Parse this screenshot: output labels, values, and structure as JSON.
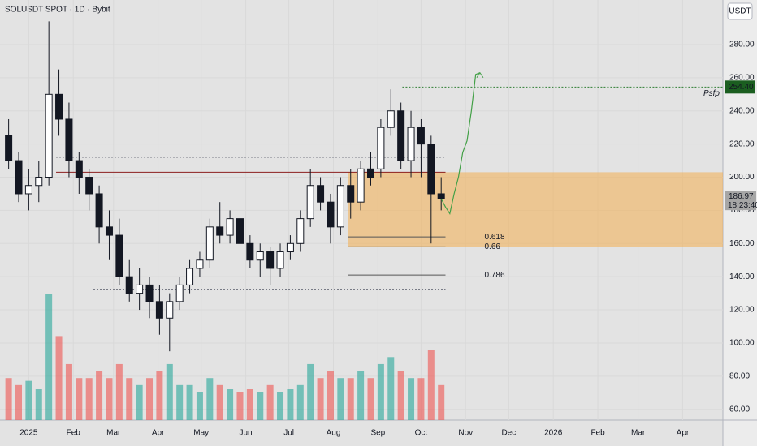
{
  "chart_data": {
    "type": "candlestick",
    "title": "SOLUSDT SPOT · 1D · Bybit",
    "currency": "USDT",
    "x": [
      -14,
      -7,
      0,
      7,
      14,
      21,
      28,
      35,
      42,
      49,
      56,
      63,
      70,
      77,
      84,
      91,
      98,
      105,
      112,
      119,
      126,
      133,
      140,
      147,
      154,
      161,
      168,
      175,
      182,
      189,
      196,
      203,
      210,
      217,
      224,
      231,
      238,
      245,
      252,
      259,
      266,
      273,
      280,
      287
    ],
    "open": [
      225,
      210,
      190,
      195,
      200,
      250,
      235,
      210,
      200,
      190,
      170,
      165,
      140,
      130,
      135,
      125,
      115,
      125,
      135,
      145,
      150,
      170,
      165,
      175,
      160,
      150,
      155,
      145,
      155,
      160,
      175,
      195,
      185,
      170,
      195,
      185,
      205,
      205,
      230,
      240,
      210,
      230,
      220,
      190
    ],
    "high": [
      235,
      215,
      205,
      210,
      294,
      265,
      245,
      215,
      205,
      195,
      180,
      175,
      150,
      145,
      140,
      135,
      130,
      140,
      150,
      155,
      175,
      185,
      180,
      180,
      165,
      160,
      158,
      160,
      165,
      180,
      205,
      200,
      190,
      200,
      205,
      210,
      215,
      235,
      253,
      245,
      240,
      235,
      225,
      200
    ],
    "low": [
      205,
      185,
      180,
      185,
      195,
      225,
      200,
      190,
      180,
      160,
      150,
      135,
      125,
      120,
      115,
      105,
      95,
      120,
      130,
      140,
      145,
      160,
      160,
      155,
      145,
      140,
      135,
      140,
      150,
      155,
      170,
      180,
      160,
      165,
      175,
      180,
      195,
      200,
      225,
      205,
      200,
      200,
      160,
      180
    ],
    "close": [
      210,
      190,
      195,
      200,
      250,
      235,
      210,
      200,
      190,
      170,
      165,
      140,
      130,
      135,
      125,
      115,
      125,
      135,
      145,
      150,
      170,
      165,
      175,
      160,
      150,
      155,
      145,
      155,
      160,
      175,
      195,
      185,
      170,
      195,
      185,
      205,
      200,
      230,
      240,
      210,
      230,
      220,
      190,
      186.97
    ],
    "volume": [
      3,
      2.5,
      2.8,
      2.2,
      9,
      6,
      4,
      3,
      3,
      3.5,
      3,
      4,
      3,
      2.5,
      3,
      3.5,
      4,
      2.5,
      2.5,
      2,
      3,
      2.5,
      2.2,
      2,
      2.2,
      2,
      2.5,
      2,
      2.2,
      2.5,
      4,
      3,
      3.5,
      3,
      3,
      3.5,
      3,
      4,
      4.5,
      3.5,
      3,
      3,
      5,
      2.5
    ],
    "vlim": [
      0,
      30
    ],
    "up_color": "#ffffff",
    "down_color": "#131722",
    "vol_up": "#26a69a",
    "vol_down": "#ef5350",
    "xlim": [
      -20,
      483
    ],
    "ylim": [
      53.5,
      306.9
    ],
    "xticks": [
      {
        "value": 0,
        "label": "2025"
      },
      {
        "value": 31,
        "label": "Feb"
      },
      {
        "value": 59,
        "label": "Mar"
      },
      {
        "value": 90,
        "label": "Apr"
      },
      {
        "value": 120,
        "label": "May"
      },
      {
        "value": 151,
        "label": "Jun"
      },
      {
        "value": 181,
        "label": "Jul"
      },
      {
        "value": 212,
        "label": "Aug"
      },
      {
        "value": 243,
        "label": "Sep"
      },
      {
        "value": 273,
        "label": "Oct"
      },
      {
        "value": 304,
        "label": "Nov"
      },
      {
        "value": 334,
        "label": "Dec"
      },
      {
        "value": 365,
        "label": "2026"
      },
      {
        "value": 396,
        "label": "Feb"
      },
      {
        "value": 424,
        "label": "Mar"
      },
      {
        "value": 455,
        "label": "Apr"
      }
    ],
    "yticks": [
      {
        "value": 60,
        "label": "60.00"
      },
      {
        "value": 80,
        "label": "80.00"
      },
      {
        "value": 100,
        "label": "100.00"
      },
      {
        "value": 120,
        "label": "120.00"
      },
      {
        "value": 140,
        "label": "140.00"
      },
      {
        "value": 160,
        "label": "160.00"
      },
      {
        "value": 180,
        "label": "180.00"
      },
      {
        "value": 200,
        "label": "200.00"
      },
      {
        "value": 220,
        "label": "220.00"
      },
      {
        "value": 240,
        "label": "240.00"
      },
      {
        "value": 260,
        "label": "260.00"
      },
      {
        "value": 280,
        "label": "280.00"
      }
    ],
    "zone": {
      "x": [
        222,
        483
      ],
      "y": [
        158,
        203
      ],
      "color": "#f2b25c"
    },
    "lines": [
      {
        "x": [
          19,
          290
        ],
        "y": 203,
        "color": "#8b1e1e",
        "dash": false
      },
      {
        "x": [
          19,
          290
        ],
        "y": 212,
        "color": "#787b86",
        "dash": true
      },
      {
        "x": [
          45,
          290
        ],
        "y": 132,
        "color": "#787b86",
        "dash": true
      },
      {
        "x": [
          260,
          483
        ],
        "y": 254.4,
        "color": "#2e7d32",
        "dash": true
      }
    ],
    "fib_levels": [
      {
        "label": "0.618",
        "y": 164
      },
      {
        "label": "0.66",
        "y": 158
      },
      {
        "label": "0.786",
        "y": 141
      }
    ],
    "fib_x": [
      222,
      290
    ],
    "projection": {
      "x": [
        287,
        290,
        293,
        296,
        299,
        302,
        305,
        308,
        311,
        314
      ],
      "y": [
        187,
        182,
        178,
        190,
        200,
        215,
        222,
        240,
        262,
        263
      ],
      "color": "#43a047"
    },
    "annotation": "Psfp",
    "psfp_price": {
      "value": 254.4,
      "label": "254.40"
    },
    "last_price": 186.97,
    "countdown": "18:23:40"
  }
}
